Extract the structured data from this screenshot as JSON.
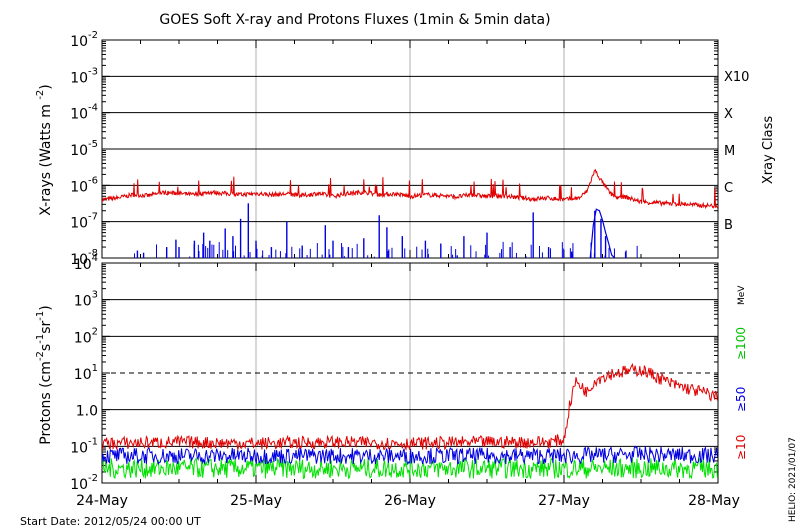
{
  "title": "GOES Soft X-ray and Protons Fluxes   (1min & 5min data)",
  "footer": {
    "start_date": "Start Date: 2012/05/24 00:00 UT",
    "credit": "HELIO: 2021/01/07"
  },
  "colors": {
    "long_xray": "#e00000",
    "short_xray": "#0000e0",
    "protons_10": "#e00000",
    "protons_50": "#0000e0",
    "protons_100": "#00e000",
    "grid": "#000000",
    "day_line": "#b0b0b0"
  },
  "x_axis": {
    "tick_labels": [
      "24-May",
      "25-May",
      "26-May",
      "27-May",
      "28-May"
    ]
  },
  "chart_data": [
    {
      "type": "line",
      "ylabel": "X-rays (Watts m",
      "ylabel_sup": "-2",
      "ylabel_close": ")",
      "log_scale": true,
      "ylim": [
        1e-08,
        0.01
      ],
      "x_range_days": [
        0,
        4
      ],
      "y_tick_labels": [
        {
          "mant": "10",
          "exp": "-2"
        },
        {
          "mant": "10",
          "exp": "-3"
        },
        {
          "mant": "10",
          "exp": "-4"
        },
        {
          "mant": "10",
          "exp": "-5"
        },
        {
          "mant": "10",
          "exp": "-6"
        },
        {
          "mant": "10",
          "exp": "-7"
        },
        {
          "mant": "10",
          "exp": "-8"
        }
      ],
      "right_axis_title": "Xray Class",
      "class_labels": [
        "X10",
        "X",
        "M",
        "C",
        "B"
      ],
      "series": [
        {
          "key": "long",
          "x": [
            0,
            0.1,
            0.2,
            0.3,
            0.4,
            0.5,
            0.6,
            0.7,
            0.8,
            0.9,
            1.0,
            1.1,
            1.2,
            1.3,
            1.4,
            1.5,
            1.6,
            1.7,
            1.8,
            1.9,
            2.0,
            2.1,
            2.2,
            2.3,
            2.4,
            2.5,
            2.6,
            2.7,
            2.8,
            2.9,
            3.0,
            3.1,
            3.15,
            3.2,
            3.25,
            3.3,
            3.35,
            3.4,
            3.5,
            3.6,
            3.7,
            3.8,
            3.9,
            4.0
          ],
          "values": [
            4e-07,
            4.5e-07,
            5.5e-07,
            5.2e-07,
            6.3e-07,
            6e-07,
            5.5e-07,
            6.5e-07,
            6e-07,
            5.5e-07,
            6e-07,
            5.5e-07,
            5.8e-07,
            5.2e-07,
            6e-07,
            5e-07,
            6e-07,
            6.5e-07,
            5.5e-07,
            5.8e-07,
            5e-07,
            5.5e-07,
            5.3e-07,
            4.8e-07,
            5.5e-07,
            5e-07,
            5.2e-07,
            4.6e-07,
            4.2e-07,
            4.5e-07,
            4e-07,
            4.5e-07,
            7e-07,
            2.6e-06,
            1.2e-06,
            6e-07,
            4.5e-07,
            4.8e-07,
            3.5e-07,
            3.3e-07,
            3.1e-07,
            3e-07,
            2.8e-07,
            2.7e-07
          ]
        },
        {
          "key": "short",
          "baseline": 1e-08,
          "spikes": [
            {
              "x": 0.23,
              "value": 1.6e-08
            },
            {
              "x": 0.27,
              "value": 1.4e-08
            },
            {
              "x": 0.42,
              "value": 2e-08
            },
            {
              "x": 0.48,
              "value": 3.2e-08
            },
            {
              "x": 0.5,
              "value": 2e-08
            },
            {
              "x": 0.6,
              "value": 3e-08
            },
            {
              "x": 0.66,
              "value": 5e-08
            },
            {
              "x": 0.7,
              "value": 3e-08
            },
            {
              "x": 0.8,
              "value": 6.5e-08
            },
            {
              "x": 0.85,
              "value": 4e-08
            },
            {
              "x": 0.9,
              "value": 1.2e-07
            },
            {
              "x": 0.95,
              "value": 3.2e-07
            },
            {
              "x": 1.0,
              "value": 3e-08
            },
            {
              "x": 1.1,
              "value": 2e-08
            },
            {
              "x": 1.2,
              "value": 1e-07
            },
            {
              "x": 1.3,
              "value": 2.2e-08
            },
            {
              "x": 1.45,
              "value": 8e-08
            },
            {
              "x": 1.5,
              "value": 3e-08
            },
            {
              "x": 1.6,
              "value": 2e-08
            },
            {
              "x": 1.7,
              "value": 3.5e-08
            },
            {
              "x": 1.8,
              "value": 1.5e-07
            },
            {
              "x": 1.85,
              "value": 7e-08
            },
            {
              "x": 1.95,
              "value": 4e-08
            },
            {
              "x": 2.1,
              "value": 3e-08
            },
            {
              "x": 2.2,
              "value": 2.5e-08
            },
            {
              "x": 2.35,
              "value": 4e-08
            },
            {
              "x": 2.5,
              "value": 5e-08
            },
            {
              "x": 2.65,
              "value": 2e-08
            },
            {
              "x": 2.8,
              "value": 1.8e-07
            },
            {
              "x": 2.9,
              "value": 2e-08
            },
            {
              "x": 3.05,
              "value": 1.5e-08
            },
            {
              "x": 3.2,
              "value": 2e-07
            },
            {
              "x": 3.24,
              "value": 1.2e-07
            },
            {
              "x": 3.27,
              "value": 4e-08
            },
            {
              "x": 3.4,
              "value": 1.5e-08
            }
          ]
        }
      ]
    },
    {
      "type": "line",
      "ylabel": "Protons (cm",
      "ylabel_parts": [
        {
          "base": "Protons (cm",
          "sup": "-2"
        },
        {
          "base": "s",
          "sup": "-1"
        },
        {
          "base": "sr",
          "sup": "-1"
        },
        {
          "base": ")",
          "sup": ""
        }
      ],
      "log_scale": true,
      "ylim": [
        0.01,
        10000
      ],
      "y_tick_labels": [
        {
          "mant": "10",
          "exp": "4"
        },
        {
          "mant": "10",
          "exp": "3"
        },
        {
          "mant": "10",
          "exp": "2"
        },
        {
          "mant": "10",
          "exp": "1"
        },
        {
          "mant": "1.0",
          "exp": ""
        },
        {
          "mant": "10",
          "exp": "-1"
        },
        {
          "mant": "10",
          "exp": "-2"
        }
      ],
      "threshold": 10,
      "right_labels": {
        "unit": "MeV",
        "ge100": "≥100",
        "ge50": "≥50",
        "ge10": "≥10"
      },
      "series": [
        {
          "key": "ge10",
          "x": [
            0,
            0.5,
            1.0,
            1.5,
            2.0,
            2.5,
            2.9,
            3.0,
            3.03,
            3.07,
            3.1,
            3.15,
            3.2,
            3.3,
            3.4,
            3.5,
            3.6,
            3.7,
            3.8,
            3.9,
            4.0
          ],
          "values": [
            0.12,
            0.13,
            0.12,
            0.13,
            0.12,
            0.13,
            0.13,
            0.15,
            0.9,
            5.5,
            5.0,
            3.0,
            6.5,
            9.5,
            11,
            12.5,
            8.0,
            5.0,
            3.8,
            3.0,
            2.2
          ]
        },
        {
          "key": "ge50",
          "x": [
            0,
            1,
            2,
            3,
            3.5,
            4
          ],
          "values": [
            0.055,
            0.055,
            0.055,
            0.055,
            0.06,
            0.055
          ]
        },
        {
          "key": "ge100",
          "x": [
            0,
            1,
            2,
            3,
            4
          ],
          "values": [
            0.025,
            0.025,
            0.025,
            0.025,
            0.025
          ]
        }
      ]
    }
  ]
}
